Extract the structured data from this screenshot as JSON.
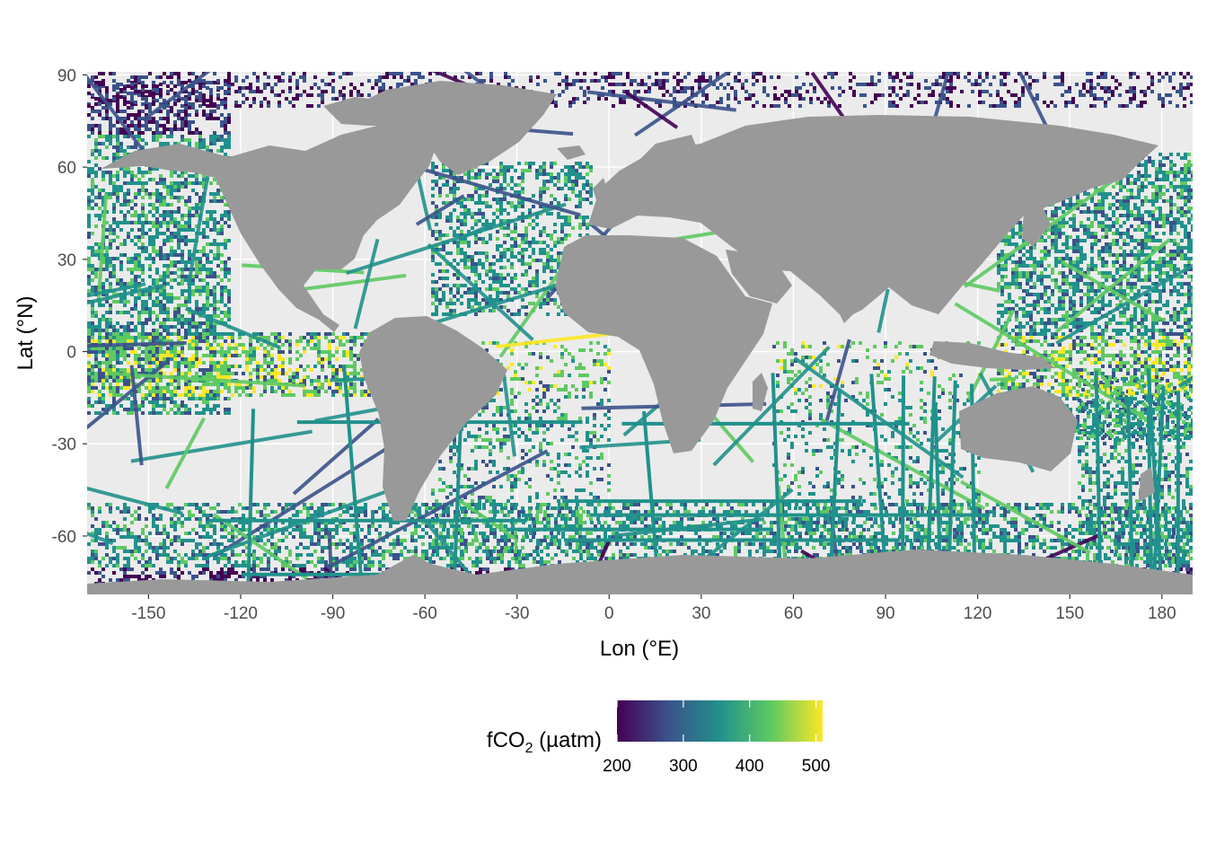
{
  "map": {
    "x_axis": {
      "title": "Lon (°E)",
      "range": [
        -170,
        190
      ],
      "ticks": [
        {
          "value": -150,
          "label": "-150"
        },
        {
          "value": -120,
          "label": "-120"
        },
        {
          "value": -90,
          "label": "-90"
        },
        {
          "value": -60,
          "label": "-60"
        },
        {
          "value": -30,
          "label": "-30"
        },
        {
          "value": 0,
          "label": "0"
        },
        {
          "value": 30,
          "label": "30"
        },
        {
          "value": 60,
          "label": "60"
        },
        {
          "value": 90,
          "label": "90"
        },
        {
          "value": 120,
          "label": "120"
        },
        {
          "value": 150,
          "label": "150"
        },
        {
          "value": 180,
          "label": "180"
        }
      ]
    },
    "y_axis": {
      "title": "Lat (°N)",
      "range": [
        -79,
        91
      ],
      "ticks": [
        {
          "value": 90,
          "label": "90"
        },
        {
          "value": 60,
          "label": "60"
        },
        {
          "value": 30,
          "label": "30"
        },
        {
          "value": 0,
          "label": "0"
        },
        {
          "value": -30,
          "label": "-30"
        },
        {
          "value": -60,
          "label": "-60"
        }
      ]
    },
    "colors": {
      "panel_background": "#ebebeb",
      "gridline": "#ffffff",
      "land": "#999999"
    },
    "legend": {
      "title_prefix": "fCO",
      "title_subscript": "2",
      "title_suffix": " (µatm)",
      "range": [
        200,
        510
      ],
      "ticks": [
        {
          "value": 200,
          "label": "200"
        },
        {
          "value": 300,
          "label": "300"
        },
        {
          "value": 400,
          "label": "400"
        },
        {
          "value": 500,
          "label": "500"
        }
      ],
      "palette": [
        "#440154",
        "#3b528b",
        "#21918c",
        "#5ec962",
        "#fde725"
      ]
    }
  }
}
